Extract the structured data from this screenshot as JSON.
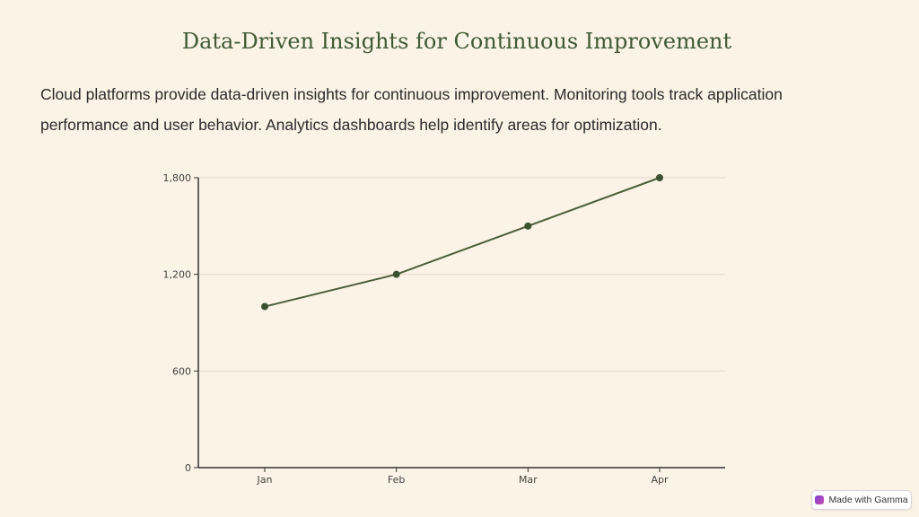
{
  "slide": {
    "title": "Data-Driven Insights for Continuous Improvement",
    "body": "Cloud platforms provide data-driven insights for continuous improvement. Monitoring tools track application performance and user behavior. Analytics dashboards help identify areas for optimization."
  },
  "chart_data": {
    "type": "line",
    "categories": [
      "Jan",
      "Feb",
      "Mar",
      "Apr"
    ],
    "series": [
      {
        "values": [
          1000,
          1200,
          1500,
          1800
        ]
      }
    ],
    "ylim": [
      0,
      1800
    ],
    "yticks": [
      0,
      600,
      1200,
      1800
    ],
    "ytick_labels": [
      "0",
      "600",
      "1,200",
      "1,800"
    ],
    "grid": true,
    "colors": {
      "line": "#4a5e3a",
      "marker": "#3b5231",
      "grid": "#e0d8cb",
      "axis": "#333333"
    }
  },
  "badge": {
    "label": "Made with Gamma",
    "icon": "gamma-logo-icon"
  }
}
